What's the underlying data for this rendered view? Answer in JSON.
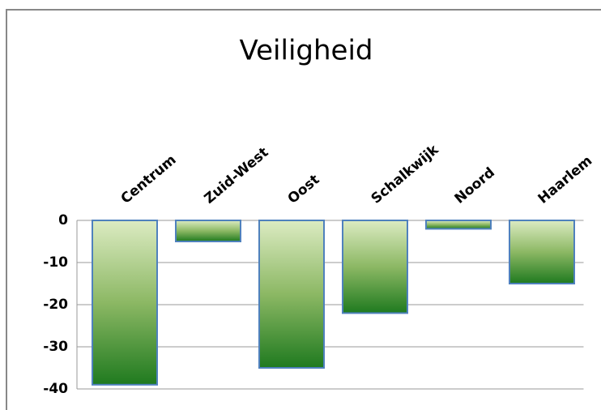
{
  "chart_data": {
    "type": "bar",
    "title": "Veiligheid",
    "categories": [
      "Centrum",
      "Zuid-West",
      "Oost",
      "Schalkwijk",
      "Noord",
      "Haarlem"
    ],
    "values": [
      -39,
      -5,
      -35,
      -22,
      -2,
      -15
    ],
    "color": "#4f81bd",
    "ylim": [
      -40,
      0
    ],
    "yticks": [
      0,
      -10,
      -20,
      -30,
      -40
    ],
    "grid": true
  }
}
